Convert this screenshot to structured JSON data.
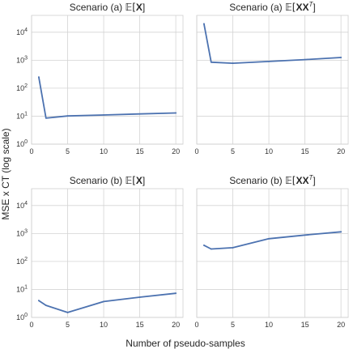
{
  "figure": {
    "xlabel": "Number of pseudo-samples",
    "ylabel": "MSE x CT (log scale)"
  },
  "chart_data": [
    {
      "type": "line",
      "title_prefix": "Scenario (a) ",
      "title_math": "E[X]",
      "x": [
        1,
        2,
        5,
        10,
        15,
        20
      ],
      "series": [
        {
          "values": [
            250,
            8.5,
            10.2,
            11,
            12,
            13
          ],
          "color": "#4c72b0"
        }
      ],
      "xlim": [
        0,
        21
      ],
      "xticks": [
        0,
        5,
        10,
        15,
        20
      ],
      "ylim": [
        1,
        40000
      ],
      "yscale": "log",
      "yticks": [
        "10^0",
        "10^1",
        "10^2",
        "10^3",
        "10^4"
      ],
      "grid": true
    },
    {
      "type": "line",
      "title_prefix": "Scenario (a) ",
      "title_math": "E[XX^T]",
      "x": [
        1,
        2,
        5,
        10,
        15,
        20
      ],
      "series": [
        {
          "values": [
            20000,
            850,
            780,
            900,
            1050,
            1250
          ],
          "color": "#4c72b0"
        }
      ],
      "xlim": [
        0,
        21
      ],
      "xticks": [
        0,
        5,
        10,
        15,
        20
      ],
      "ylim": [
        1,
        40000
      ],
      "yscale": "log",
      "yticks": [],
      "grid": true
    },
    {
      "type": "line",
      "title_prefix": "Scenario (b) ",
      "title_math": "E[X]",
      "x": [
        1,
        2,
        5,
        10,
        15,
        20
      ],
      "series": [
        {
          "values": [
            4,
            2.7,
            1.5,
            3.7,
            5.3,
            7.3
          ],
          "color": "#4c72b0"
        }
      ],
      "xlim": [
        0,
        21
      ],
      "xticks": [
        0,
        5,
        10,
        15,
        20
      ],
      "ylim": [
        1,
        40000
      ],
      "yscale": "log",
      "yticks": [
        "10^0",
        "10^1",
        "10^2",
        "10^3",
        "10^4"
      ],
      "grid": true
    },
    {
      "type": "line",
      "title_prefix": "Scenario (b) ",
      "title_math": "E[XX^T]",
      "x": [
        1,
        2,
        5,
        10,
        15,
        20
      ],
      "series": [
        {
          "values": [
            380,
            280,
            310,
            650,
            880,
            1150
          ],
          "color": "#4c72b0"
        }
      ],
      "xlim": [
        0,
        21
      ],
      "xticks": [
        0,
        5,
        10,
        15,
        20
      ],
      "ylim": [
        1,
        40000
      ],
      "yscale": "log",
      "yticks": [],
      "grid": true
    }
  ]
}
